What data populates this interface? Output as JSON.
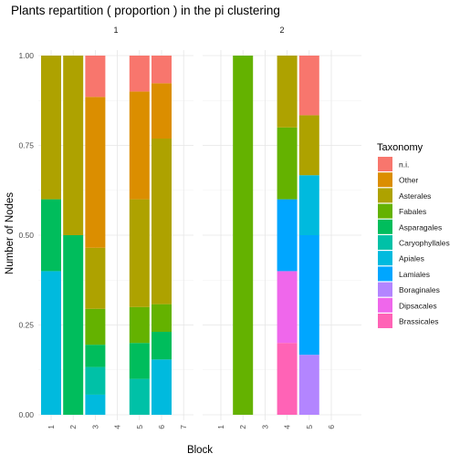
{
  "chart_data": {
    "type": "bar",
    "stacked": true,
    "title": "Plants repartition ( proportion ) in the pi clustering",
    "xlabel": "Block",
    "ylabel": "Number of Nodes",
    "ylim": [
      0,
      1
    ],
    "yticks": [
      "0.00",
      "0.25",
      "0.50",
      "0.75",
      "1.00"
    ],
    "grid": true,
    "legend": {
      "title": "Taxonomy",
      "position": "right",
      "entries": [
        {
          "name": "n.i.",
          "color": "#F8766D"
        },
        {
          "name": "Other",
          "color": "#DB8E00"
        },
        {
          "name": "Asterales",
          "color": "#AEA200"
        },
        {
          "name": "Fabales",
          "color": "#64B200"
        },
        {
          "name": "Asparagales",
          "color": "#00BD5C"
        },
        {
          "name": "Caryophyllales",
          "color": "#00C1A7"
        },
        {
          "name": "Apiales",
          "color": "#00BADE"
        },
        {
          "name": "Lamiales",
          "color": "#00A6FF"
        },
        {
          "name": "Boraginales",
          "color": "#B385FF"
        },
        {
          "name": "Dipsacales",
          "color": "#EF67EB"
        },
        {
          "name": "Brassicales",
          "color": "#FF63B6"
        }
      ]
    },
    "panels": [
      {
        "label": "1",
        "categories": [
          "1",
          "2",
          "3",
          "4",
          "5",
          "6",
          "7"
        ],
        "bars": [
          {
            "block": "1",
            "segments": [
              {
                "taxon": "Apiales",
                "value": 0.4
              },
              {
                "taxon": "Asparagales",
                "value": 0.2
              },
              {
                "taxon": "Asterales",
                "value": 0.4
              }
            ]
          },
          {
            "block": "2",
            "segments": [
              {
                "taxon": "Asparagales",
                "value": 0.5
              },
              {
                "taxon": "Asterales",
                "value": 0.5
              }
            ]
          },
          {
            "block": "3",
            "segments": [
              {
                "taxon": "Apiales",
                "value": 0.056
              },
              {
                "taxon": "Caryophyllales",
                "value": 0.077
              },
              {
                "taxon": "Asparagales",
                "value": 0.062
              },
              {
                "taxon": "Fabales",
                "value": 0.1
              },
              {
                "taxon": "Asterales",
                "value": 0.17
              },
              {
                "taxon": "Other",
                "value": 0.42
              },
              {
                "taxon": "n.i.",
                "value": 0.115
              }
            ]
          },
          {
            "block": "5",
            "segments": [
              {
                "taxon": "Caryophyllales",
                "value": 0.1
              },
              {
                "taxon": "Asparagales",
                "value": 0.1
              },
              {
                "taxon": "Fabales",
                "value": 0.1
              },
              {
                "taxon": "Asterales",
                "value": 0.3
              },
              {
                "taxon": "Other",
                "value": 0.3
              },
              {
                "taxon": "n.i.",
                "value": 0.1
              }
            ]
          },
          {
            "block": "6",
            "segments": [
              {
                "taxon": "Apiales",
                "value": 0.154
              },
              {
                "taxon": "Asparagales",
                "value": 0.077
              },
              {
                "taxon": "Fabales",
                "value": 0.077
              },
              {
                "taxon": "Asterales",
                "value": 0.461
              },
              {
                "taxon": "Other",
                "value": 0.154
              },
              {
                "taxon": "n.i.",
                "value": 0.077
              }
            ]
          }
        ]
      },
      {
        "label": "2",
        "categories": [
          "1",
          "2",
          "3",
          "4",
          "5",
          "6"
        ],
        "bars": [
          {
            "block": "2",
            "segments": [
              {
                "taxon": "Fabales",
                "value": 1.0
              }
            ]
          },
          {
            "block": "4",
            "segments": [
              {
                "taxon": "Brassicales",
                "value": 0.2
              },
              {
                "taxon": "Dipsacales",
                "value": 0.2
              },
              {
                "taxon": "Lamiales",
                "value": 0.2
              },
              {
                "taxon": "Fabales",
                "value": 0.2
              },
              {
                "taxon": "Asterales",
                "value": 0.2
              }
            ]
          },
          {
            "block": "5",
            "segments": [
              {
                "taxon": "Boraginales",
                "value": 0.167
              },
              {
                "taxon": "Lamiales",
                "value": 0.333
              },
              {
                "taxon": "Apiales",
                "value": 0.167
              },
              {
                "taxon": "Asterales",
                "value": 0.167
              },
              {
                "taxon": "n.i.",
                "value": 0.166
              }
            ]
          }
        ]
      }
    ]
  }
}
